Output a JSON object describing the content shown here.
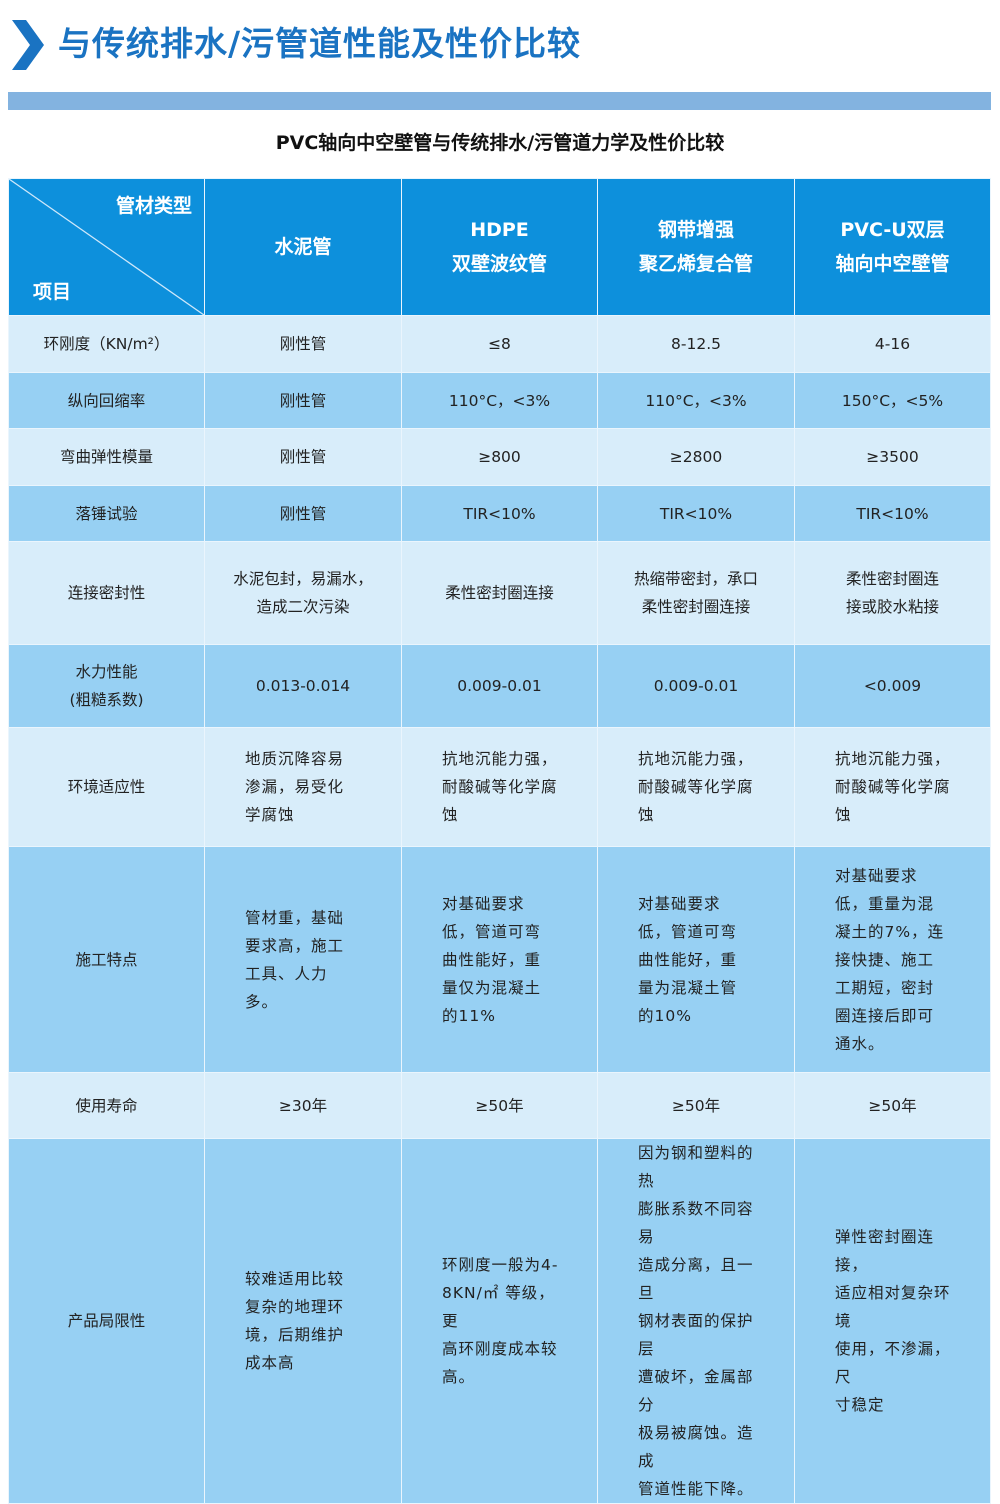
{
  "page_title": "与传统排水/污管道性能及性价比较",
  "table_title": "PVC轴向中空壁管与传统排水/污管道力学及性价比较",
  "colors": {
    "title": "#1a73c2",
    "header_bg": "#0d90dc",
    "row_light": "#d8edfa",
    "row_mid": "#97d0f3",
    "band": "#83b3e0"
  },
  "header": {
    "corner_top": "管材类型",
    "corner_bottom": "项目",
    "columns": [
      "水泥管",
      "HDPE\n双壁波纹管",
      "钢带增强\n聚乙烯复合管",
      "PVC-U双层\n轴向中空壁管"
    ]
  },
  "rows": [
    {
      "item": "环刚度（KN/m²）",
      "cells": [
        "刚性管",
        "≤8",
        "8-12.5",
        "4-16"
      ]
    },
    {
      "item": "纵向回缩率",
      "cells": [
        "刚性管",
        "110°C，<3%",
        "110°C，<3%",
        "150°C，<5%"
      ]
    },
    {
      "item": "弯曲弹性模量",
      "cells": [
        "刚性管",
        "≥800",
        "≥2800",
        "≥3500"
      ]
    },
    {
      "item": "落锤试验",
      "cells": [
        "刚性管",
        "TIR<10%",
        "TIR<10%",
        "TIR<10%"
      ]
    },
    {
      "item": "连接密封性",
      "cells": [
        "水泥包封，易漏水，\n造成二次污染",
        "柔性密封圈连接",
        "热缩带密封，承口\n柔性密封圈连接",
        "柔性密封圈连\n接或胶水粘接"
      ]
    },
    {
      "item": "水力性能\n(粗糙系数)",
      "cells": [
        "0.013-0.014",
        "0.009-0.01",
        "0.009-0.01",
        "<0.009"
      ]
    },
    {
      "item": "环境适应性",
      "cells": [
        "地质沉降容易\n渗漏，易受化\n学腐蚀",
        "抗地沉能力强，\n耐酸碱等化学腐\n蚀",
        "抗地沉能力强，\n耐酸碱等化学腐\n蚀",
        "抗地沉能力强，\n耐酸碱等化学腐\n蚀"
      ]
    },
    {
      "item": "施工特点",
      "cells": [
        "管材重，基础\n要求高，施工\n工具、人力\n多。",
        "对基础要求\n低，管道可弯\n曲性能好，重\n量仅为混凝土\n的11%",
        "对基础要求\n低，管道可弯\n曲性能好，重\n量为混凝土管\n的10%",
        "对基础要求\n低，重量为混\n凝土的7%，连\n接快捷、施工\n工期短，密封\n圈连接后即可\n通水。"
      ]
    },
    {
      "item": "使用寿命",
      "cells": [
        "≥30年",
        "≥50年",
        "≥50年",
        "≥50年"
      ]
    },
    {
      "item": "产品局限性",
      "cells": [
        "较难适用比较\n复杂的地理环\n境，后期维护\n成本高",
        "环刚度一般为4-\n8KN/㎡ 等级，更\n高环刚度成本较\n高。",
        "因为钢和塑料的热\n膨胀系数不同容易\n造成分离，且一旦\n钢材表面的保护层\n遭破坏，金属部分\n极易被腐蚀。造成\n管道性能下降。",
        "弹性密封圈连接，\n适应相对复杂环境\n使用，不渗漏，尺\n寸稳定"
      ]
    }
  ]
}
